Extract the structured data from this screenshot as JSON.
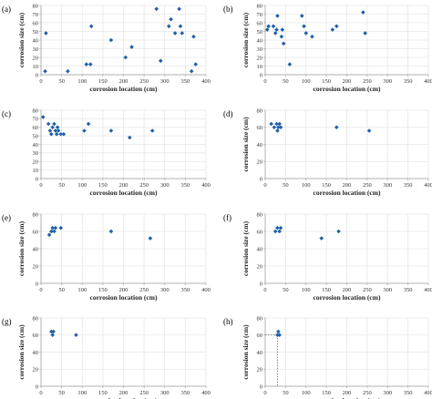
{
  "figure": {
    "marker_color": "#1f5fa8",
    "grid_color": "#e6e6e6",
    "axis_color": "#b0b0b0"
  },
  "chart_data": [
    {
      "panel": "(a)",
      "type": "scatter",
      "xlabel": "corrosion location (cm)",
      "ylabel": "corrosion size (cm)",
      "xlim": [
        0,
        400
      ],
      "ylim": [
        0,
        80
      ],
      "xticks": [
        0,
        50,
        100,
        150,
        200,
        250,
        300,
        350,
        400
      ],
      "yticks": [
        0,
        10,
        20,
        30,
        40,
        50,
        60,
        70,
        80
      ],
      "grid": true,
      "points": [
        [
          10,
          4
        ],
        [
          12,
          48
        ],
        [
          65,
          4
        ],
        [
          110,
          12
        ],
        [
          120,
          12
        ],
        [
          122,
          56
        ],
        [
          170,
          40
        ],
        [
          205,
          20
        ],
        [
          220,
          32
        ],
        [
          280,
          76
        ],
        [
          290,
          16
        ],
        [
          310,
          56
        ],
        [
          315,
          64
        ],
        [
          325,
          48
        ],
        [
          335,
          76
        ],
        [
          338,
          56
        ],
        [
          342,
          48
        ],
        [
          365,
          4
        ],
        [
          370,
          44
        ],
        [
          375,
          12
        ]
      ]
    },
    {
      "panel": "(b)",
      "type": "scatter",
      "xlabel": "corrosion location (cm)",
      "ylabel": "corrosion size (cm)",
      "xlim": [
        0,
        400
      ],
      "ylim": [
        0,
        80
      ],
      "xticks": [
        0,
        50,
        100,
        150,
        200,
        250,
        300,
        350,
        400
      ],
      "yticks": [
        0,
        10,
        20,
        30,
        40,
        50,
        60,
        70,
        80
      ],
      "grid": true,
      "points": [
        [
          5,
          52
        ],
        [
          8,
          56
        ],
        [
          20,
          56
        ],
        [
          25,
          48
        ],
        [
          28,
          52
        ],
        [
          30,
          68
        ],
        [
          40,
          44
        ],
        [
          42,
          52
        ],
        [
          45,
          36
        ],
        [
          60,
          12
        ],
        [
          90,
          68
        ],
        [
          95,
          56
        ],
        [
          100,
          48
        ],
        [
          115,
          44
        ],
        [
          165,
          52
        ],
        [
          175,
          56
        ],
        [
          240,
          72
        ],
        [
          245,
          48
        ]
      ]
    },
    {
      "panel": "(c)",
      "type": "scatter",
      "xlabel": "corrosion location (cm)",
      "ylabel": "",
      "xlim": [
        0,
        400
      ],
      "ylim": [
        0,
        80
      ],
      "xticks": [
        0,
        50,
        100,
        150,
        200,
        250,
        300,
        350,
        400
      ],
      "yticks": [
        0,
        10,
        20,
        30,
        40,
        50,
        60,
        70,
        80
      ],
      "grid": true,
      "points": [
        [
          5,
          72
        ],
        [
          18,
          64
        ],
        [
          22,
          56
        ],
        [
          25,
          52
        ],
        [
          28,
          60
        ],
        [
          32,
          64
        ],
        [
          35,
          56
        ],
        [
          38,
          52
        ],
        [
          40,
          60
        ],
        [
          42,
          56
        ],
        [
          48,
          52
        ],
        [
          55,
          52
        ],
        [
          105,
          56
        ],
        [
          115,
          64
        ],
        [
          170,
          56
        ],
        [
          215,
          48
        ],
        [
          270,
          56
        ]
      ]
    },
    {
      "panel": "(d)",
      "type": "scatter",
      "xlabel": "corrosion location (cm)",
      "ylabel": "corrosion size (cm)",
      "xlim": [
        0,
        400
      ],
      "ylim": [
        0,
        80
      ],
      "xticks": [
        0,
        50,
        100,
        150,
        200,
        250,
        300,
        350,
        400
      ],
      "yticks": [
        0,
        20,
        40,
        60,
        80
      ],
      "grid": true,
      "points": [
        [
          15,
          64
        ],
        [
          22,
          60
        ],
        [
          28,
          64
        ],
        [
          30,
          56
        ],
        [
          32,
          60
        ],
        [
          35,
          64
        ],
        [
          38,
          60
        ],
        [
          175,
          60
        ],
        [
          255,
          56
        ]
      ]
    },
    {
      "panel": "(e)",
      "type": "scatter",
      "xlabel": "corrosion location (cm)",
      "ylabel": "corrosion size (cm)",
      "xlim": [
        0,
        400
      ],
      "ylim": [
        0,
        80
      ],
      "xticks": [
        0,
        50,
        100,
        150,
        200,
        250,
        300,
        350,
        400
      ],
      "yticks": [
        0,
        20,
        40,
        60,
        80
      ],
      "grid": true,
      "points": [
        [
          20,
          56
        ],
        [
          25,
          60
        ],
        [
          28,
          64
        ],
        [
          32,
          60
        ],
        [
          35,
          64
        ],
        [
          48,
          64
        ],
        [
          170,
          60
        ],
        [
          265,
          52
        ]
      ]
    },
    {
      "panel": "(f)",
      "type": "scatter",
      "xlabel": "corrosion location (cm)",
      "ylabel": "corrosion size (cm)",
      "xlim": [
        0,
        400
      ],
      "ylim": [
        0,
        80
      ],
      "xticks": [
        0,
        50,
        100,
        150,
        200,
        250,
        300,
        350,
        400
      ],
      "yticks": [
        0,
        20,
        40,
        60,
        80
      ],
      "grid": true,
      "points": [
        [
          25,
          60
        ],
        [
          30,
          64
        ],
        [
          35,
          60
        ],
        [
          38,
          64
        ],
        [
          138,
          52
        ],
        [
          180,
          60
        ]
      ]
    },
    {
      "panel": "(g)",
      "type": "scatter",
      "xlabel": "corrosion location (cm)",
      "ylabel": "corrosion size (cm)",
      "xlim": [
        0,
        400
      ],
      "ylim": [
        0,
        80
      ],
      "xticks": [
        0,
        50,
        100,
        150,
        200,
        250,
        300,
        350,
        400
      ],
      "yticks": [
        0,
        20,
        40,
        60,
        80
      ],
      "grid": true,
      "points": [
        [
          25,
          64
        ],
        [
          28,
          60
        ],
        [
          30,
          64
        ],
        [
          85,
          60
        ]
      ]
    },
    {
      "panel": "(h)",
      "type": "scatter",
      "xlabel": "corrosion location (cm)",
      "ylabel": "corrosion size (cm)",
      "xlim": [
        0,
        400
      ],
      "ylim": [
        0,
        80
      ],
      "xticks": [
        0,
        50,
        100,
        150,
        200,
        250,
        300,
        350,
        400
      ],
      "yticks": [
        0,
        20,
        40,
        60,
        80
      ],
      "grid": true,
      "guide_lines": true,
      "points": [
        [
          30,
          60
        ],
        [
          32,
          64
        ],
        [
          35,
          60
        ]
      ]
    }
  ]
}
